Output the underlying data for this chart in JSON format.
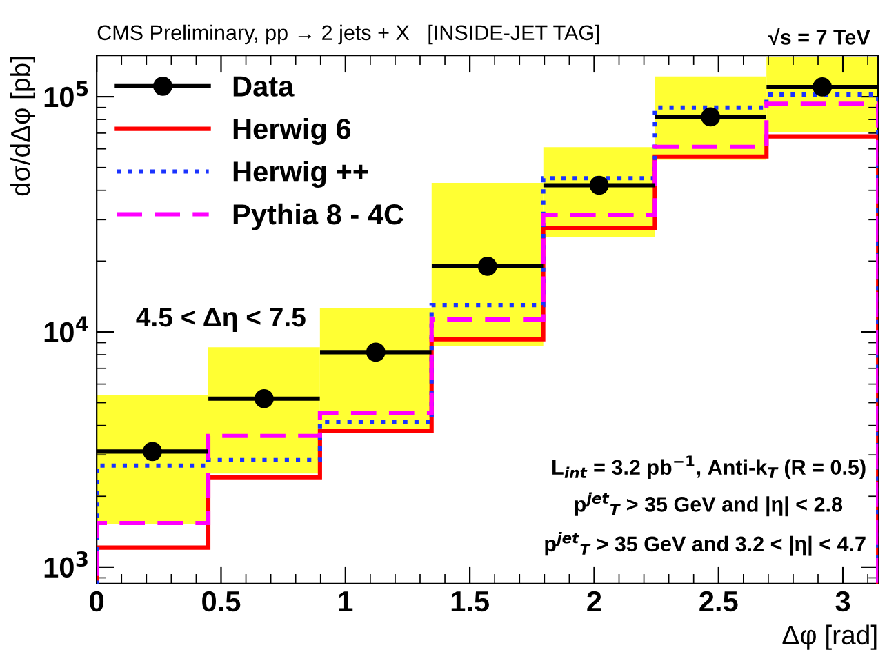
{
  "chart_data": {
    "type": "histogram",
    "title": "CMS Preliminary, pp → 2 jets + X   [INSIDE-JET TAG]",
    "xlabel": "Δφ [rad]",
    "ylabel": "dσ/dΔφ [pb]",
    "bins": [
      0,
      0.4488,
      0.8976,
      1.3464,
      1.7952,
      2.244,
      2.6928,
      3.1416
    ],
    "series": [
      {
        "type": "bar",
        "color": "#ffff33",
        "x": [
          0.224,
          0.673,
          1.122,
          1.571,
          2.02,
          2.468,
          2.917
        ],
        "base": [
          1520,
          2500,
          3800,
          8700,
          25300,
          53900,
          70500
        ],
        "values": [
          3880,
          6100,
          8800,
          34300,
          35700,
          68100,
          77500
        ]
      },
      {
        "name": "Data",
        "type": "scatter",
        "color": "#000000",
        "marker": "circle",
        "x": [
          0.224,
          0.673,
          1.122,
          1.571,
          2.02,
          2.468,
          2.917
        ],
        "values": [
          3100,
          5200,
          8200,
          19000,
          42000,
          82000,
          110000
        ],
        "xerrors": [
          0.224,
          0.224,
          0.224,
          0.224,
          0.224,
          0.224,
          0.224
        ]
      },
      {
        "name": "Herwig 6",
        "color": "#ff0000",
        "line_style": "solid",
        "values": [
          1210,
          2410,
          3790,
          9300,
          27600,
          55700,
          67800
        ]
      },
      {
        "name": "Herwig ++",
        "color": "#1a33ff",
        "line_style": "dotted",
        "values": [
          2700,
          2850,
          4130,
          13000,
          45000,
          90000,
          102000
        ]
      },
      {
        "name": "Pythia 8 - 4C",
        "color": "#ff00ff",
        "line_style": "dashed",
        "values": [
          1540,
          3610,
          4520,
          11300,
          31400,
          61200,
          93300
        ]
      }
    ],
    "xlim": [
      0,
      3.1416
    ],
    "xticks": [
      0,
      0.5,
      1,
      1.5,
      2,
      2.5,
      3
    ],
    "ylim": [
      850,
      150000
    ],
    "yticks": [
      {
        "value": 1000,
        "label": "10$^{3}$"
      },
      {
        "value": 10000,
        "label": "10$^{4}$"
      },
      {
        "value": 100000,
        "label": "10$^{5}$"
      }
    ],
    "log": "y",
    "grid": false,
    "legend": "top left",
    "annotations": [
      "√s = 7 TeV",
      "4.5 < Δη < 7.5",
      "L$_{int}$ = 3.2 pb$^{−1}$, Anti-k$_{T}$ (R = 0.5)",
      "p$^{jet}$$_{T}$ > 35 GeV and |η| < 2.8",
      "p$^{jet}$$_{T}$ > 35 GeV and 3.2 < |η| < 4.7"
    ]
  }
}
